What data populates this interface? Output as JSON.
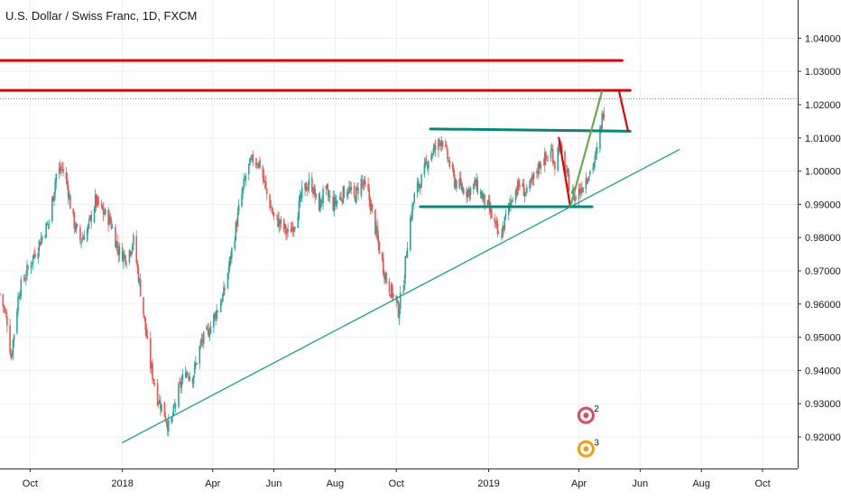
{
  "chart_data": {
    "type": "candlestick",
    "title": "U.S. Dollar / Swiss Franc, 1D, FXCM",
    "xlabel": "",
    "ylabel": "",
    "x_ticks": [
      "Oct",
      "2018",
      "Apr",
      "Jun",
      "Aug",
      "Oct",
      "2019",
      "Apr",
      "Jun",
      "Aug",
      "Oct"
    ],
    "x_tick_dates": [
      "2017-10-01",
      "2018-01-01",
      "2018-04-01",
      "2018-06-01",
      "2018-08-01",
      "2018-10-01",
      "2019-01-01",
      "2019-04-01",
      "2019-06-01",
      "2019-08-01",
      "2019-10-01"
    ],
    "y_ticks": [
      "1.04000",
      "1.03000",
      "1.02000",
      "1.01000",
      "1.00000",
      "0.99000",
      "0.98000",
      "0.97000",
      "0.96000",
      "0.95000",
      "0.94000",
      "0.93000",
      "0.92000"
    ],
    "ylim": [
      0.9105,
      1.0515
    ],
    "xlim": [
      "2017-09-01",
      "2019-11-05"
    ],
    "last_price": 1.0218,
    "grid": true,
    "up_color": "#26a69a",
    "down_color": "#ef5350",
    "price_path": [
      [
        "2017-09-01",
        0.963
      ],
      [
        "2017-09-08",
        0.955
      ],
      [
        "2017-09-12",
        0.944
      ],
      [
        "2017-09-20",
        0.964
      ],
      [
        "2017-10-05",
        0.975
      ],
      [
        "2017-10-20",
        0.985
      ],
      [
        "2017-10-27",
        0.999
      ],
      [
        "2017-11-02",
        1.001
      ],
      [
        "2017-11-07",
        0.996
      ],
      [
        "2017-11-12",
        0.986
      ],
      [
        "2017-11-20",
        0.979
      ],
      [
        "2017-11-28",
        0.983
      ],
      [
        "2017-12-05",
        0.991
      ],
      [
        "2017-12-12",
        0.988
      ],
      [
        "2017-12-20",
        0.985
      ],
      [
        "2017-12-28",
        0.976
      ],
      [
        "2018-01-05",
        0.974
      ],
      [
        "2018-01-12",
        0.979
      ],
      [
        "2018-01-20",
        0.962
      ],
      [
        "2018-01-28",
        0.943
      ],
      [
        "2018-02-05",
        0.932
      ],
      [
        "2018-02-12",
        0.927
      ],
      [
        "2018-02-17",
        0.922
      ],
      [
        "2018-02-25",
        0.933
      ],
      [
        "2018-03-05",
        0.94
      ],
      [
        "2018-03-12",
        0.938
      ],
      [
        "2018-03-20",
        0.948
      ],
      [
        "2018-03-28",
        0.952
      ],
      [
        "2018-04-05",
        0.958
      ],
      [
        "2018-04-12",
        0.963
      ],
      [
        "2018-04-20",
        0.976
      ],
      [
        "2018-04-28",
        0.99
      ],
      [
        "2018-05-05",
        1.0
      ],
      [
        "2018-05-12",
        1.004
      ],
      [
        "2018-05-18",
        1.002
      ],
      [
        "2018-05-25",
        0.993
      ],
      [
        "2018-06-01",
        0.986
      ],
      [
        "2018-06-08",
        0.984
      ],
      [
        "2018-06-15",
        0.981
      ],
      [
        "2018-06-22",
        0.985
      ],
      [
        "2018-06-30",
        0.994
      ],
      [
        "2018-07-08",
        0.997
      ],
      [
        "2018-07-15",
        0.989
      ],
      [
        "2018-07-22",
        0.994
      ],
      [
        "2018-07-30",
        0.99
      ],
      [
        "2018-08-06",
        0.992
      ],
      [
        "2018-08-13",
        0.995
      ],
      [
        "2018-08-20",
        0.992
      ],
      [
        "2018-08-27",
        0.997
      ],
      [
        "2018-09-03",
        0.993
      ],
      [
        "2018-09-08",
        0.986
      ],
      [
        "2018-09-15",
        0.975
      ],
      [
        "2018-09-22",
        0.966
      ],
      [
        "2018-09-29",
        0.962
      ],
      [
        "2018-10-03",
        0.958
      ],
      [
        "2018-10-08",
        0.966
      ],
      [
        "2018-10-13",
        0.982
      ],
      [
        "2018-10-20",
        0.994
      ],
      [
        "2018-10-27",
        0.998
      ],
      [
        "2018-11-03",
        1.005
      ],
      [
        "2018-11-10",
        1.007
      ],
      [
        "2018-11-15",
        1.01
      ],
      [
        "2018-11-22",
        1.003
      ],
      [
        "2018-11-28",
        0.997
      ],
      [
        "2018-12-05",
        0.995
      ],
      [
        "2018-12-12",
        0.994
      ],
      [
        "2018-12-19",
        0.996
      ],
      [
        "2018-12-26",
        0.992
      ],
      [
        "2019-01-02",
        0.988
      ],
      [
        "2019-01-08",
        0.983
      ],
      [
        "2019-01-12",
        0.979
      ],
      [
        "2019-01-18",
        0.986
      ],
      [
        "2019-01-25",
        0.993
      ],
      [
        "2019-02-01",
        0.996
      ],
      [
        "2019-02-08",
        0.993
      ],
      [
        "2019-02-15",
        0.998
      ],
      [
        "2019-02-22",
        1.003
      ],
      [
        "2019-03-01",
        1.004
      ],
      [
        "2019-03-05",
        1.006
      ],
      [
        "2019-03-08",
        1.002
      ],
      [
        "2019-03-12",
        1.008
      ],
      [
        "2019-03-18",
        1.001
      ],
      [
        "2019-03-22",
        0.996
      ],
      [
        "2019-03-28",
        0.992
      ],
      [
        "2019-04-03",
        0.995
      ],
      [
        "2019-04-08",
        0.998
      ],
      [
        "2019-04-12",
        1.0
      ],
      [
        "2019-04-18",
        1.004
      ],
      [
        "2019-04-22",
        1.012
      ],
      [
        "2019-04-25",
        1.018
      ],
      [
        "2019-04-28",
        1.022
      ]
    ],
    "annotations": [
      {
        "kind": "line",
        "color": "#e40000",
        "width": 3,
        "points": [
          [
            "2017-09-01",
            1.0333
          ],
          [
            "2019-05-14",
            1.0333
          ]
        ]
      },
      {
        "kind": "line",
        "color": "#e40000",
        "width": 3,
        "points": [
          [
            "2017-09-01",
            1.0243
          ],
          [
            "2019-05-22",
            1.0243
          ]
        ]
      },
      {
        "kind": "line",
        "color": "#00897b",
        "width": 3,
        "points": [
          [
            "2018-11-04",
            1.0127
          ],
          [
            "2019-05-22",
            1.012
          ]
        ]
      },
      {
        "kind": "line",
        "color": "#00897b",
        "width": 3,
        "points": [
          [
            "2018-10-25",
            0.9893
          ],
          [
            "2019-04-14",
            0.9893
          ]
        ]
      },
      {
        "kind": "line",
        "color": "#1aa37a",
        "width": 1.3,
        "points": [
          [
            "2018-01-01",
            0.9183
          ],
          [
            "2019-07-10",
            1.0065
          ]
        ]
      },
      {
        "kind": "line",
        "color": "#e40000",
        "width": 2.2,
        "points": [
          [
            "2019-03-12",
            1.01
          ],
          [
            "2019-03-23",
            0.99
          ]
        ]
      },
      {
        "kind": "line",
        "color": "#6aa84f",
        "width": 2.2,
        "points": [
          [
            "2019-03-24",
            0.99
          ],
          [
            "2019-04-24",
            1.024
          ]
        ]
      },
      {
        "kind": "line",
        "color": "#e40000",
        "width": 2.2,
        "points": [
          [
            "2019-05-11",
            1.024
          ],
          [
            "2019-05-20",
            1.012
          ]
        ]
      }
    ],
    "badges": [
      {
        "label": "2",
        "color": "#e0485e",
        "date": "2019-04-08",
        "price": 0.9265
      },
      {
        "label": "3",
        "color": "#f39c12",
        "date": "2019-04-08",
        "price": 0.9164
      }
    ]
  }
}
